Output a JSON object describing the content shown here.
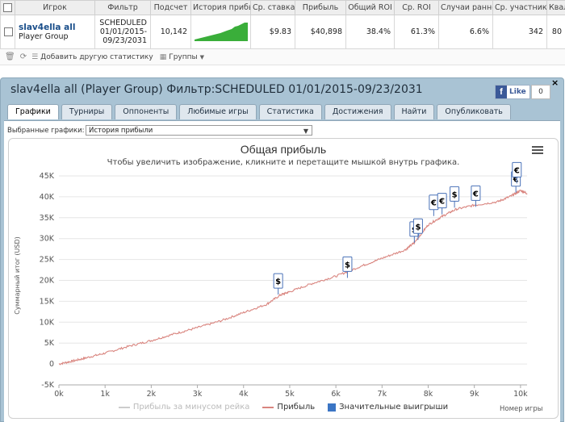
{
  "table": {
    "headers": [
      "",
      "Игрок",
      "Фильтр",
      "Подсчет",
      "История прибыл",
      "Ср. ставка",
      "Прибыль",
      "Общий ROI",
      "Ср. ROI",
      "Случаи ранне",
      "Ср. участник",
      "Квалиф"
    ],
    "row": {
      "player_name": "slav4ella all",
      "player_group": "Player Group",
      "filter_line1": "SCHEDULED",
      "filter_line2": "01/01/2015-",
      "filter_line3": "09/23/2031",
      "count": "10,142",
      "avg_stake": "$9.83",
      "profit": "$40,898",
      "total_roi": "38.4%",
      "avg_roi": "61.3%",
      "early_cases": "6.6%",
      "avg_participants": "342",
      "qualif": "80"
    }
  },
  "toolbar": {
    "add_stat": "Добавить другую статистику",
    "groups": "Группы"
  },
  "panel": {
    "title": "slav4ella all (Player Group) Фильтр:SCHEDULED 01/01/2015-09/23/2031",
    "like": "Like",
    "like_count": "0",
    "tabs": [
      "Графики",
      "Турниры",
      "Оппоненты",
      "Любимые игры",
      "Статистика",
      "Достижения",
      "Найти",
      "Опубликовать"
    ],
    "select_label": "Выбранные графики:",
    "select_value": "История прибыли"
  },
  "chart_data": {
    "type": "line",
    "title": "Общая прибыль",
    "subtitle": "Чтобы увеличить изображение, кликните и перетащите мышкой внутрь графика.",
    "xlabel": "Номер игры",
    "ylabel": "Суммарный итог (USD)",
    "xlim": [
      0,
      10142
    ],
    "ylim": [
      -5000,
      45000
    ],
    "x_ticks": [
      "0k",
      "1k",
      "2k",
      "3k",
      "4k",
      "5k",
      "6k",
      "7k",
      "8k",
      "9k",
      "10k"
    ],
    "y_ticks": [
      "-5K",
      "0",
      "5K",
      "10K",
      "15K",
      "20K",
      "25K",
      "30K",
      "35K",
      "40K",
      "45K"
    ],
    "series": [
      {
        "name": "Прибыль",
        "color": "#d9857f",
        "x": [
          0,
          300,
          600,
          1000,
          1500,
          2000,
          2500,
          3000,
          3500,
          4000,
          4500,
          4800,
          5000,
          5500,
          6000,
          6500,
          7000,
          7500,
          7700,
          8000,
          8300,
          8600,
          9000,
          9500,
          9800,
          10000,
          10142
        ],
        "y": [
          0,
          700,
          1500,
          2600,
          4200,
          5600,
          7200,
          8700,
          10300,
          12300,
          14300,
          16500,
          17300,
          19300,
          21000,
          23200,
          25300,
          27300,
          29000,
          33300,
          35300,
          37000,
          38000,
          38800,
          40200,
          41500,
          40800
        ]
      },
      {
        "name": "Прибыль за минусом рейка",
        "color": "#cccccc",
        "hidden": true,
        "x": [],
        "y": []
      }
    ],
    "flags": [
      {
        "x": 4750,
        "y": 16600,
        "symbol": "$"
      },
      {
        "x": 6250,
        "y": 20600,
        "symbol": "$"
      },
      {
        "x": 7700,
        "y": 29000,
        "symbol": "$"
      },
      {
        "x": 7780,
        "y": 29700,
        "symbol": "$"
      },
      {
        "x": 8120,
        "y": 35400,
        "symbol": "€"
      },
      {
        "x": 8300,
        "y": 35800,
        "symbol": "€"
      },
      {
        "x": 8570,
        "y": 37400,
        "symbol": "$"
      },
      {
        "x": 9030,
        "y": 37600,
        "symbol": "€"
      },
      {
        "x": 9900,
        "y": 41000,
        "symbol": "€"
      },
      {
        "x": 9920,
        "y": 43200,
        "symbol": "€"
      }
    ],
    "legend": [
      "Прибыль за минусом рейка",
      "Прибыль",
      "Значительные выигрыши"
    ],
    "legend_colors": [
      "#cccccc",
      "#d9857f",
      "#3b75c4"
    ]
  }
}
